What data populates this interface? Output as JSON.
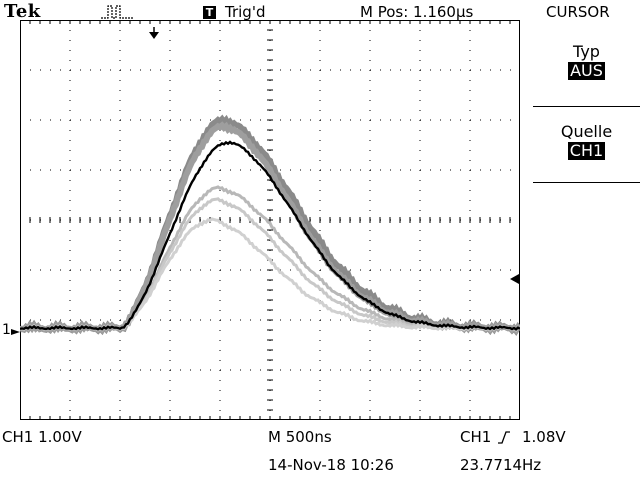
{
  "header": {
    "brand": "Tek",
    "acquire_icon": "pulse-icon",
    "trigger_badge": "T",
    "trigger_status": "Trig'd",
    "main_position": "M Pos: 1.160µs",
    "menu_title": "CURSOR"
  },
  "side_menu": {
    "items": [
      {
        "label": "Typ",
        "value": "AUS"
      },
      {
        "label": "Quelle",
        "value": "CH1"
      }
    ]
  },
  "screen": {
    "channel_marker": "1",
    "trigger_position_icon": "arrow-down-icon",
    "trigger_level_icon": "arrow-left-icon",
    "colors": {
      "trace": "#000000",
      "persistence": [
        "#8a8a8a",
        "#9e9e9e",
        "#b8b8b8",
        "#c8c8c8",
        "#d0d0d0"
      ],
      "grid": "#000000"
    }
  },
  "readout": {
    "ch1_scale": "CH1  1.00V",
    "timebase": "M 500ns",
    "trigger_source": "CH1",
    "trigger_slope_icon": "rising-edge-icon",
    "trigger_level": "1.08V",
    "datetime": "14-Nov-18 10:26",
    "frequency": "23.7714Hz"
  }
}
